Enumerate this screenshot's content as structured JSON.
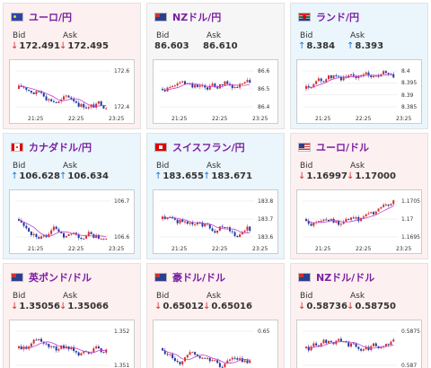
{
  "labels": {
    "bid": "Bid",
    "ask": "Ask"
  },
  "cards": [
    {
      "pair": "ユーロ/円",
      "flag": "eu",
      "trend": "down",
      "bid": "172.491",
      "ask": "172.495",
      "bid_dir": "down",
      "ask_dir": "down",
      "chart": {
        "yticks": [
          "172.6",
          "172.4"
        ],
        "xticks": [
          "21:25",
          "22:25",
          "23:25"
        ]
      }
    },
    {
      "pair": "NZドル/円",
      "flag": "nz",
      "trend": "neutral",
      "bid": "86.603",
      "ask": "86.610",
      "bid_dir": "",
      "ask_dir": "",
      "chart": {
        "yticks": [
          "86.6",
          "86.5",
          "86.4"
        ],
        "xticks": [
          "21:25",
          "22:25",
          "23:25"
        ]
      }
    },
    {
      "pair": "ランド/円",
      "flag": "za",
      "trend": "up",
      "bid": "8.384",
      "ask": "8.393",
      "bid_dir": "up",
      "ask_dir": "up",
      "chart": {
        "yticks": [
          "8.4",
          "8.395",
          "8.39",
          "8.385"
        ],
        "xticks": [
          "21:25",
          "22:25",
          "23:25"
        ]
      }
    },
    {
      "pair": "カナダドル/円",
      "flag": "ca",
      "trend": "up",
      "bid": "106.628",
      "ask": "106.634",
      "bid_dir": "up",
      "ask_dir": "up",
      "chart": {
        "yticks": [
          "106.7",
          "106.6"
        ],
        "xticks": [
          "21:25",
          "22:25",
          "23:25"
        ]
      }
    },
    {
      "pair": "スイスフラン/円",
      "flag": "ch",
      "trend": "up",
      "bid": "183.655",
      "ask": "183.671",
      "bid_dir": "up",
      "ask_dir": "up",
      "chart": {
        "yticks": [
          "183.8",
          "183.7",
          "183.6"
        ],
        "xticks": [
          "21:25",
          "22:25",
          "23:25"
        ]
      }
    },
    {
      "pair": "ユーロ/ドル",
      "flag": "us",
      "trend": "down",
      "bid": "1.16997",
      "ask": "1.17000",
      "bid_dir": "down",
      "ask_dir": "down",
      "chart": {
        "yticks": [
          "1.1705",
          "1.17",
          "1.1695"
        ],
        "xticks": [
          "21:25",
          "22:25",
          "23:25"
        ]
      }
    },
    {
      "pair": "英ポンド/ドル",
      "flag": "uk",
      "trend": "down",
      "bid": "1.35056",
      "ask": "1.35066",
      "bid_dir": "down",
      "ask_dir": "down",
      "chart": {
        "yticks": [
          "1.352",
          "1.351"
        ],
        "xticks": []
      }
    },
    {
      "pair": "豪ドル/ドル",
      "flag": "au",
      "trend": "down",
      "bid": "0.65012",
      "ask": "0.65016",
      "bid_dir": "down",
      "ask_dir": "down",
      "chart": {
        "yticks": [
          "0.65"
        ],
        "xticks": []
      }
    },
    {
      "pair": "NZドル/ドル",
      "flag": "nz",
      "trend": "down",
      "bid": "0.58736",
      "ask": "0.58750",
      "bid_dir": "down",
      "ask_dir": "down",
      "chart": {
        "yticks": [
          "0.5875",
          "0.587"
        ],
        "xticks": []
      }
    }
  ],
  "colors": {
    "candle_up": "#d32f2f",
    "candle_down": "#1e3a9f",
    "moving_avg": "#c040d0",
    "moving_avg2": "#999999"
  }
}
